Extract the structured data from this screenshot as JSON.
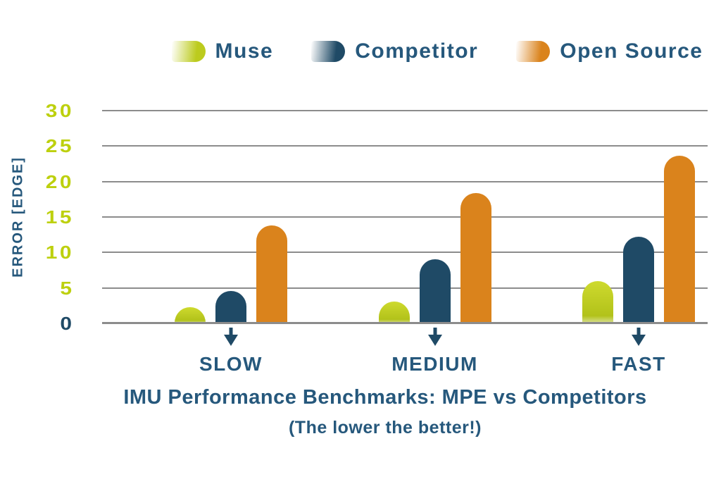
{
  "chart_data": {
    "type": "bar",
    "title": "IMU Performance Benchmarks: MPE vs Competitors",
    "subtitle": "(The lower the better!)",
    "ylabel": "ERROR [EDGE]",
    "categories": [
      "SLOW",
      "MEDIUM",
      "FAST"
    ],
    "series": [
      {
        "name": "Muse",
        "values": [
          2.3,
          3.1,
          6.0
        ],
        "color": "#BCCB1E",
        "gradient": [
          "#CEDA2E",
          "#B2C21A",
          "#DCE39A"
        ]
      },
      {
        "name": "Competitor",
        "values": [
          4.6,
          9.0,
          12.2
        ],
        "color": "#1F4A66"
      },
      {
        "name": "Open Source",
        "values": [
          13.8,
          18.4,
          23.6
        ],
        "color": "#DA831C"
      }
    ],
    "yticks": [
      0,
      5,
      10,
      15,
      20,
      25,
      30
    ],
    "ylim": [
      0,
      30
    ],
    "grid": true,
    "legend_position": "top",
    "category_marker": "down-arrow"
  },
  "colors": {
    "muse_green": "#BCCB1E",
    "competitor_blue": "#1F4A66",
    "open_source_orange": "#DA831C",
    "text_blue": "#26587C",
    "tick_label_green": "#BDD00E",
    "tick_label_zero_blue": "#1F4A66",
    "gridline_gray": "#8C8C8C",
    "arrow_blue": "#1F4A66",
    "background": "#FFFFFF"
  }
}
